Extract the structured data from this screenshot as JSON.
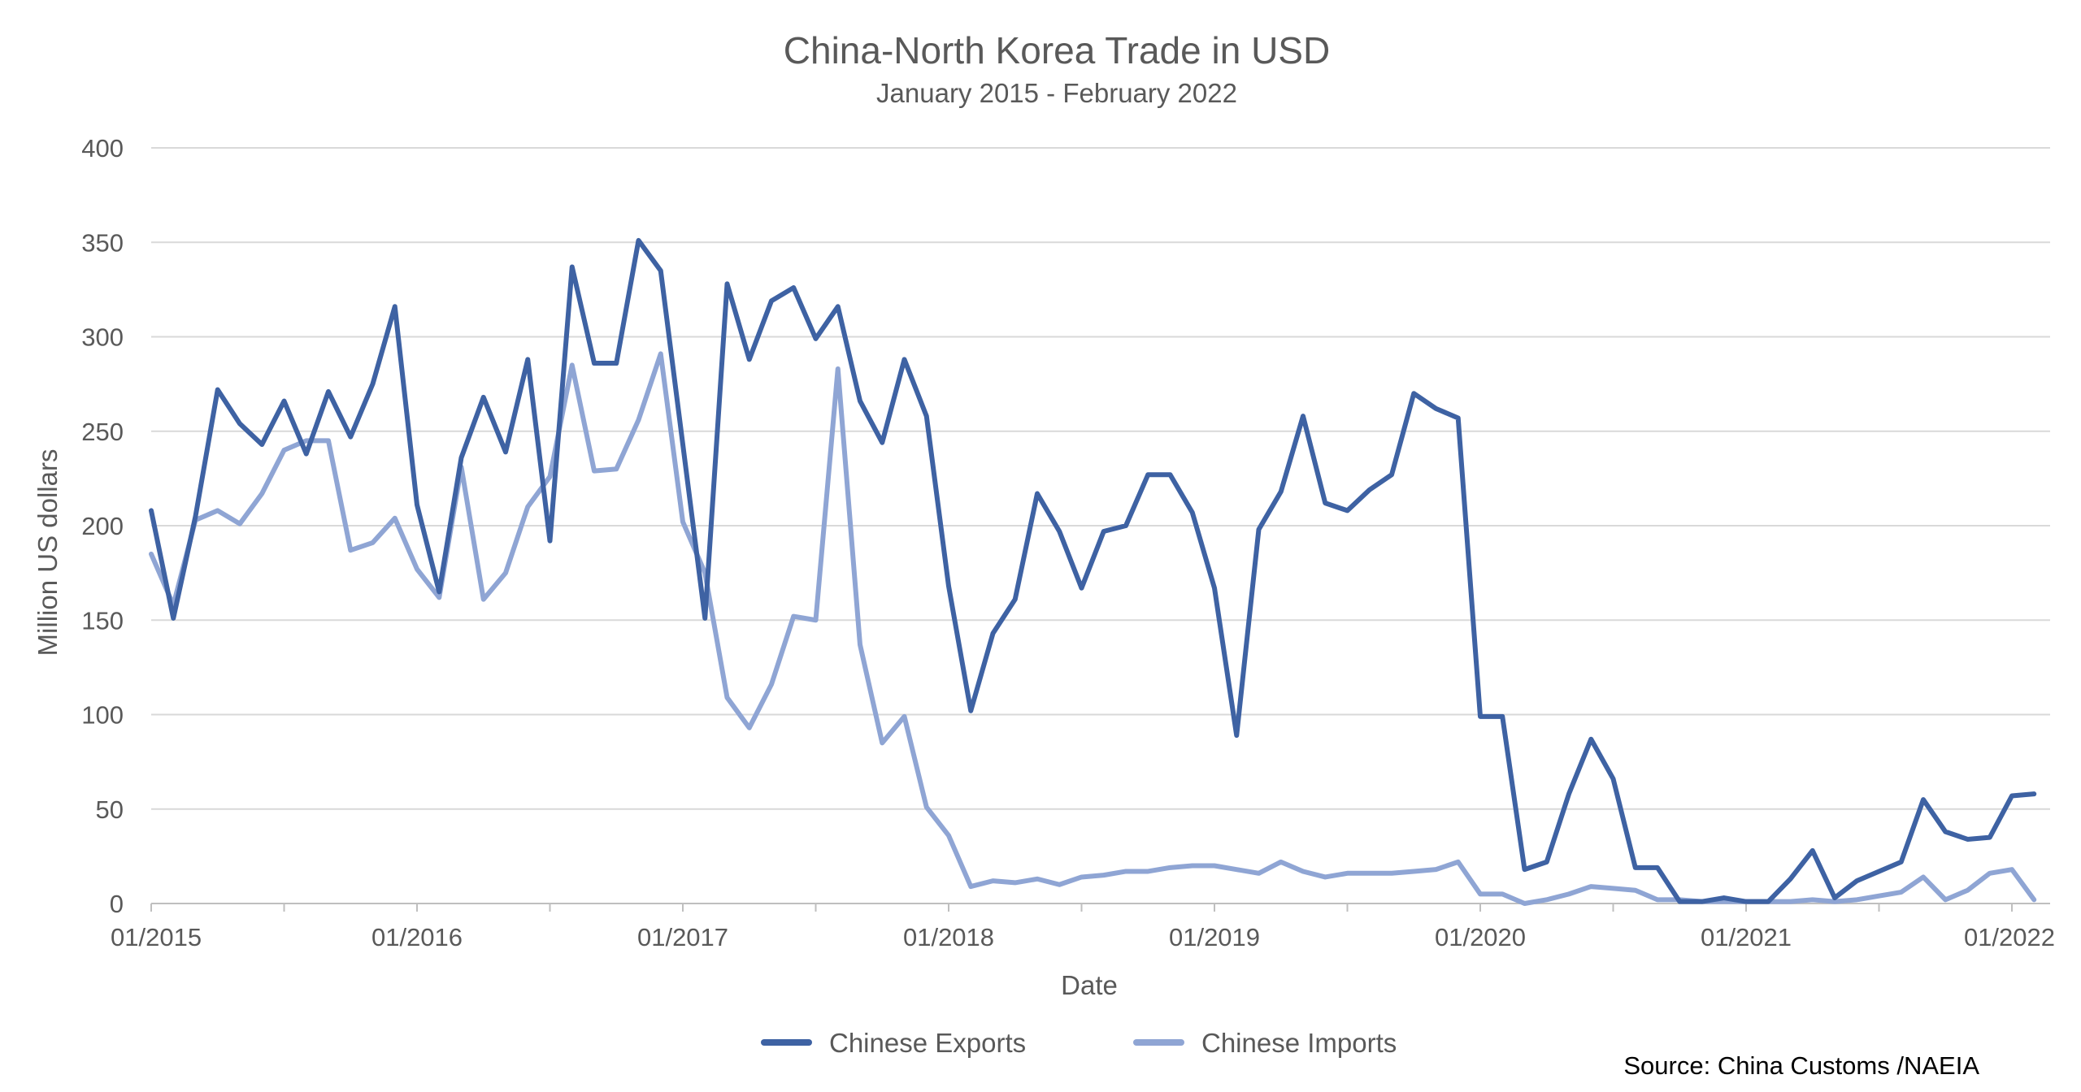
{
  "chart_data": {
    "type": "line",
    "title": "China-North Korea Trade in USD",
    "subtitle": "January 2015 - February 2022",
    "xlabel": "Date",
    "ylabel": "Million US dollars",
    "ylim": [
      0,
      400
    ],
    "yticks": [
      0,
      50,
      100,
      150,
      200,
      250,
      300,
      350,
      400
    ],
    "x_start": "01/2015",
    "x_end": "02/2022",
    "x_tick_labels": [
      "01/2015",
      "01/2016",
      "01/2017",
      "01/2018",
      "01/2019",
      "01/2020",
      "01/2021",
      "01/2022"
    ],
    "grid": true,
    "legend_position": "bottom",
    "source": "Source: China Customs /NAEIA",
    "series": [
      {
        "name": "Chinese Exports",
        "color": "#3E62A3",
        "values": [
          208,
          151,
          205,
          272,
          254,
          243,
          266,
          238,
          271,
          247,
          275,
          316,
          211,
          165,
          236,
          268,
          239,
          288,
          192,
          337,
          286,
          286,
          351,
          335,
          243,
          151,
          328,
          288,
          319,
          326,
          299,
          316,
          266,
          244,
          288,
          258,
          168,
          102,
          143,
          161,
          217,
          197,
          167,
          197,
          200,
          227,
          227,
          207,
          167,
          89,
          198,
          218,
          258,
          212,
          208,
          219,
          227,
          270,
          262,
          257,
          99,
          99,
          18,
          22,
          58,
          87,
          66,
          19,
          19,
          1,
          1,
          3,
          1,
          1,
          13,
          28,
          3,
          12,
          17,
          22,
          55,
          38,
          34,
          35,
          57,
          58
        ]
      },
      {
        "name": "Chinese Imports",
        "color": "#8FA5D4",
        "values": [
          185,
          158,
          203,
          208,
          201,
          217,
          240,
          245,
          245,
          187,
          191,
          204,
          177,
          162,
          231,
          161,
          175,
          210,
          226,
          285,
          229,
          230,
          256,
          291,
          202,
          175,
          109,
          93,
          116,
          152,
          150,
          283,
          137,
          85,
          99,
          51,
          36,
          9,
          12,
          11,
          13,
          10,
          14,
          15,
          17,
          17,
          19,
          20,
          20,
          18,
          16,
          22,
          17,
          14,
          16,
          16,
          16,
          17,
          18,
          22,
          5,
          5,
          0,
          2,
          5,
          9,
          8,
          7,
          2,
          2,
          1,
          1,
          1,
          1,
          1,
          2,
          1,
          2,
          4,
          6,
          14,
          2,
          7,
          16,
          18,
          2
        ]
      }
    ]
  }
}
